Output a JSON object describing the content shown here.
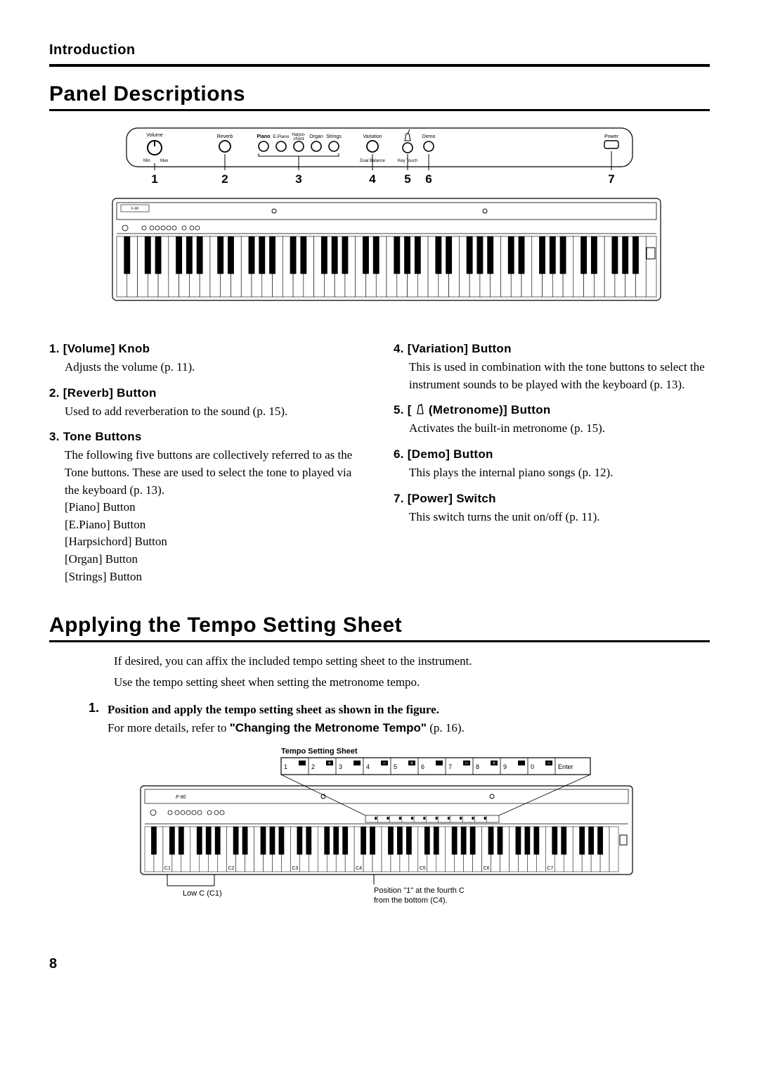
{
  "page": {
    "breadcrumb": "Introduction",
    "number": "8"
  },
  "section1": {
    "title": "Panel Descriptions"
  },
  "panel_diagram": {
    "labels": {
      "volume": "Volume",
      "min": "Min",
      "max": "Max",
      "reverb": "Reverb",
      "piano": "Piano",
      "epiano": "E.Piano",
      "harpsi": "Harpsi-\nchord",
      "organ": "Organ",
      "strings": "Strings",
      "variation": "Variation",
      "dual_balance": "Dual Balance",
      "key_touch": "Key Touch",
      "demo": "Demo",
      "power": "Power"
    },
    "numbers": [
      "1",
      "2",
      "3",
      "4",
      "5",
      "6",
      "7"
    ]
  },
  "items_left": [
    {
      "h": "1. [Volume] Knob",
      "body": [
        "Adjusts the volume (p. 11)."
      ]
    },
    {
      "h": "2. [Reverb] Button",
      "body": [
        "Used to add reverberation to the sound (p. 15)."
      ]
    },
    {
      "h": "3. Tone Buttons",
      "body": [
        "The following five buttons are collectively referred to as the Tone buttons. These are used to select the tone to played via the keyboard (p. 13).",
        "[Piano] Button",
        "[E.Piano] Button",
        "[Harpsichord] Button",
        "[Organ] Button",
        "[Strings] Button"
      ]
    }
  ],
  "items_right": [
    {
      "h": "4. [Variation] Button",
      "body": [
        "This is used in combination with the tone buttons to select the instrument sounds to be played with the keyboard (p. 13)."
      ]
    },
    {
      "h_pre": "5. [ ",
      "h_post": " (Metronome)] Button",
      "body": [
        "Activates the built-in metronome (p. 15)."
      ]
    },
    {
      "h": "6. [Demo] Button",
      "body": [
        "This plays the internal piano songs (p. 12)."
      ]
    },
    {
      "h": "7. [Power] Switch",
      "body": [
        "This switch turns the unit on/off (p. 11)."
      ]
    }
  ],
  "section2": {
    "title": "Applying the Tempo Setting Sheet",
    "intro": [
      "If desired, you can affix the included tempo setting sheet to the instrument.",
      "Use the tempo setting sheet when setting the metronome tempo."
    ],
    "step_num": "1.",
    "step_bold": "Position and apply the tempo setting sheet as shown in the figure.",
    "step_detail_pre": "For more details, refer to ",
    "step_detail_bold": "\"Changing the Metronome Tempo\"",
    "step_detail_post": " (p. 16)."
  },
  "tempo_diagram": {
    "title": "Tempo Setting Sheet",
    "cells": [
      "1",
      "2",
      "3",
      "4",
      "5",
      "6",
      "7",
      "8",
      "9",
      "0",
      "Enter"
    ],
    "c_labels": [
      "C1",
      "C2",
      "C3",
      "C4",
      "C5",
      "C6",
      "C7"
    ],
    "caption_left": "Low C (C1)",
    "caption_right": "Position \"1\" at the fourth C from the bottom (C4)."
  }
}
